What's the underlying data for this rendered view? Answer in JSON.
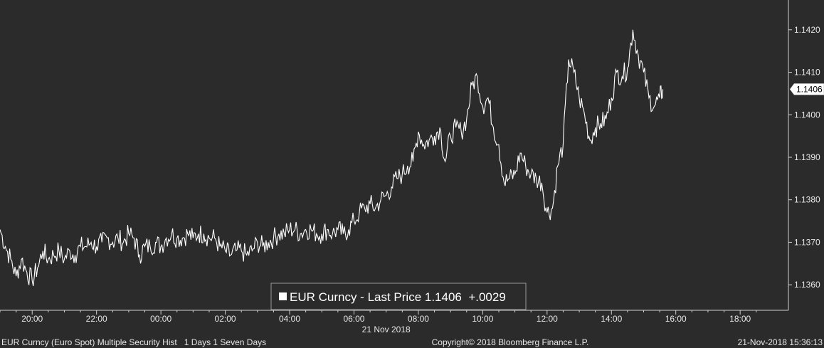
{
  "chart_data": {
    "type": "line",
    "title": "",
    "xlabel": "",
    "ylabel": "",
    "series": [
      {
        "name": "EUR Curncy - Last Price",
        "color": "#ffffff",
        "points": [
          [
            "19:00",
            1.1373
          ],
          [
            "19:10",
            1.1369
          ],
          [
            "19:20",
            1.1366
          ],
          [
            "19:30",
            1.1362
          ],
          [
            "19:40",
            1.1366
          ],
          [
            "19:50",
            1.1363
          ],
          [
            "20:00",
            1.1361
          ],
          [
            "20:10",
            1.1364
          ],
          [
            "20:20",
            1.1368
          ],
          [
            "20:30",
            1.1366
          ],
          [
            "20:40",
            1.1367
          ],
          [
            "20:50",
            1.1368
          ],
          [
            "21:00",
            1.1366
          ],
          [
            "21:10",
            1.1368
          ],
          [
            "21:20",
            1.1367
          ],
          [
            "21:30",
            1.1369
          ],
          [
            "21:40",
            1.1369
          ],
          [
            "21:50",
            1.137
          ],
          [
            "22:00",
            1.1369
          ],
          [
            "22:10",
            1.137
          ],
          [
            "22:20",
            1.1371
          ],
          [
            "22:30",
            1.137
          ],
          [
            "22:40",
            1.1371
          ],
          [
            "22:50",
            1.137
          ],
          [
            "23:00",
            1.1372
          ],
          [
            "23:10",
            1.1371
          ],
          [
            "23:20",
            1.1367
          ],
          [
            "23:30",
            1.1369
          ],
          [
            "23:40",
            1.1369
          ],
          [
            "23:50",
            1.137
          ],
          [
            "00:00",
            1.1369
          ],
          [
            "00:10",
            1.1371
          ],
          [
            "00:20",
            1.1372
          ],
          [
            "00:30",
            1.1371
          ],
          [
            "00:40",
            1.1371
          ],
          [
            "00:50",
            1.1372
          ],
          [
            "01:00",
            1.1371
          ],
          [
            "01:10",
            1.1372
          ],
          [
            "01:20",
            1.1372
          ],
          [
            "01:30",
            1.1371
          ],
          [
            "01:40",
            1.1371
          ],
          [
            "01:50",
            1.1369
          ],
          [
            "02:00",
            1.1368
          ],
          [
            "02:10",
            1.1367
          ],
          [
            "02:20",
            1.1368
          ],
          [
            "02:30",
            1.1368
          ],
          [
            "02:40",
            1.1367
          ],
          [
            "02:50",
            1.1368
          ],
          [
            "03:00",
            1.137
          ],
          [
            "03:10",
            1.1369
          ],
          [
            "03:20",
            1.137
          ],
          [
            "03:30",
            1.1371
          ],
          [
            "03:40",
            1.1372
          ],
          [
            "03:50",
            1.1372
          ],
          [
            "04:00",
            1.1373
          ],
          [
            "04:10",
            1.1373
          ],
          [
            "04:20",
            1.1372
          ],
          [
            "04:30",
            1.1373
          ],
          [
            "04:40",
            1.1373
          ],
          [
            "04:50",
            1.1372
          ],
          [
            "05:00",
            1.1372
          ],
          [
            "05:10",
            1.1373
          ],
          [
            "05:20",
            1.1372
          ],
          [
            "05:30",
            1.1373
          ],
          [
            "05:40",
            1.1372
          ],
          [
            "05:50",
            1.1373
          ],
          [
            "06:00",
            1.1375
          ],
          [
            "06:10",
            1.1377
          ],
          [
            "06:20",
            1.1378
          ],
          [
            "06:30",
            1.1379
          ],
          [
            "06:40",
            1.1378
          ],
          [
            "06:50",
            1.138
          ],
          [
            "07:00",
            1.1381
          ],
          [
            "07:10",
            1.1383
          ],
          [
            "07:20",
            1.1385
          ],
          [
            "07:30",
            1.1386
          ],
          [
            "07:40",
            1.1388
          ],
          [
            "07:50",
            1.1389
          ],
          [
            "08:00",
            1.1396
          ],
          [
            "08:10",
            1.1393
          ],
          [
            "08:20",
            1.1394
          ],
          [
            "08:30",
            1.1395
          ],
          [
            "08:40",
            1.1397
          ],
          [
            "08:50",
            1.1389
          ],
          [
            "09:00",
            1.1395
          ],
          [
            "09:10",
            1.1397
          ],
          [
            "09:20",
            1.1396
          ],
          [
            "09:30",
            1.1399
          ],
          [
            "09:40",
            1.1407
          ],
          [
            "09:50",
            1.1409
          ],
          [
            "10:00",
            1.1402
          ],
          [
            "10:10",
            1.1404
          ],
          [
            "10:20",
            1.1397
          ],
          [
            "10:30",
            1.1393
          ],
          [
            "10:40",
            1.1384
          ],
          [
            "10:50",
            1.1385
          ],
          [
            "11:00",
            1.1386
          ],
          [
            "11:10",
            1.1391
          ],
          [
            "11:20",
            1.1388
          ],
          [
            "11:30",
            1.1386
          ],
          [
            "11:40",
            1.1385
          ],
          [
            "11:50",
            1.1384
          ],
          [
            "12:00",
            1.1377
          ],
          [
            "12:10",
            1.1378
          ],
          [
            "12:20",
            1.1388
          ],
          [
            "12:30",
            1.1393
          ],
          [
            "12:40",
            1.1413
          ],
          [
            "12:50",
            1.141
          ],
          [
            "13:00",
            1.1404
          ],
          [
            "13:10",
            1.14
          ],
          [
            "13:20",
            1.1394
          ],
          [
            "13:30",
            1.1397
          ],
          [
            "13:40",
            1.1398
          ],
          [
            "13:50",
            1.1399
          ],
          [
            "14:00",
            1.1404
          ],
          [
            "14:10",
            1.141
          ],
          [
            "14:20",
            1.1409
          ],
          [
            "14:30",
            1.1411
          ],
          [
            "14:40",
            1.142
          ],
          [
            "14:50",
            1.1414
          ],
          [
            "15:00",
            1.141
          ],
          [
            "15:10",
            1.1404
          ],
          [
            "15:20",
            1.1402
          ],
          [
            "15:30",
            1.1404
          ],
          [
            "15:36",
            1.1406
          ]
        ]
      }
    ],
    "x_axis": {
      "ticks": [
        "20:00",
        "22:00",
        "00:00",
        "02:00",
        "04:00",
        "06:00",
        "08:00",
        "10:00",
        "12:00",
        "14:00",
        "16:00",
        "18:00"
      ],
      "date_label": "21 Nov 2018",
      "start": "2018-11-20 19:00",
      "end": "2018-11-21 19:30"
    },
    "y_axis": {
      "position": "right",
      "ticks": [
        "1.1360",
        "1.1370",
        "1.1380",
        "1.1390",
        "1.1400",
        "1.1410",
        "1.1420"
      ],
      "min": 1.1354,
      "max": 1.1427
    },
    "grid": false,
    "legend": {
      "placement": "bottom-center",
      "text": "EUR Curncy - Last Price 1.1406  +.0029"
    },
    "last_price_label": "1.1406"
  },
  "footer": {
    "left": "EUR Curncy (Euro Spot) Multiple Security Hist   1 Days 1 Seven Days",
    "center": "Copyright© 2018 Bloomberg Finance L.P.",
    "right": "21-Nov-2018 15:36:13"
  },
  "colors": {
    "background": "#2b2b2b",
    "line": "#ffffff",
    "axis": "#d0d0d0",
    "text": "#e6e6e6"
  }
}
